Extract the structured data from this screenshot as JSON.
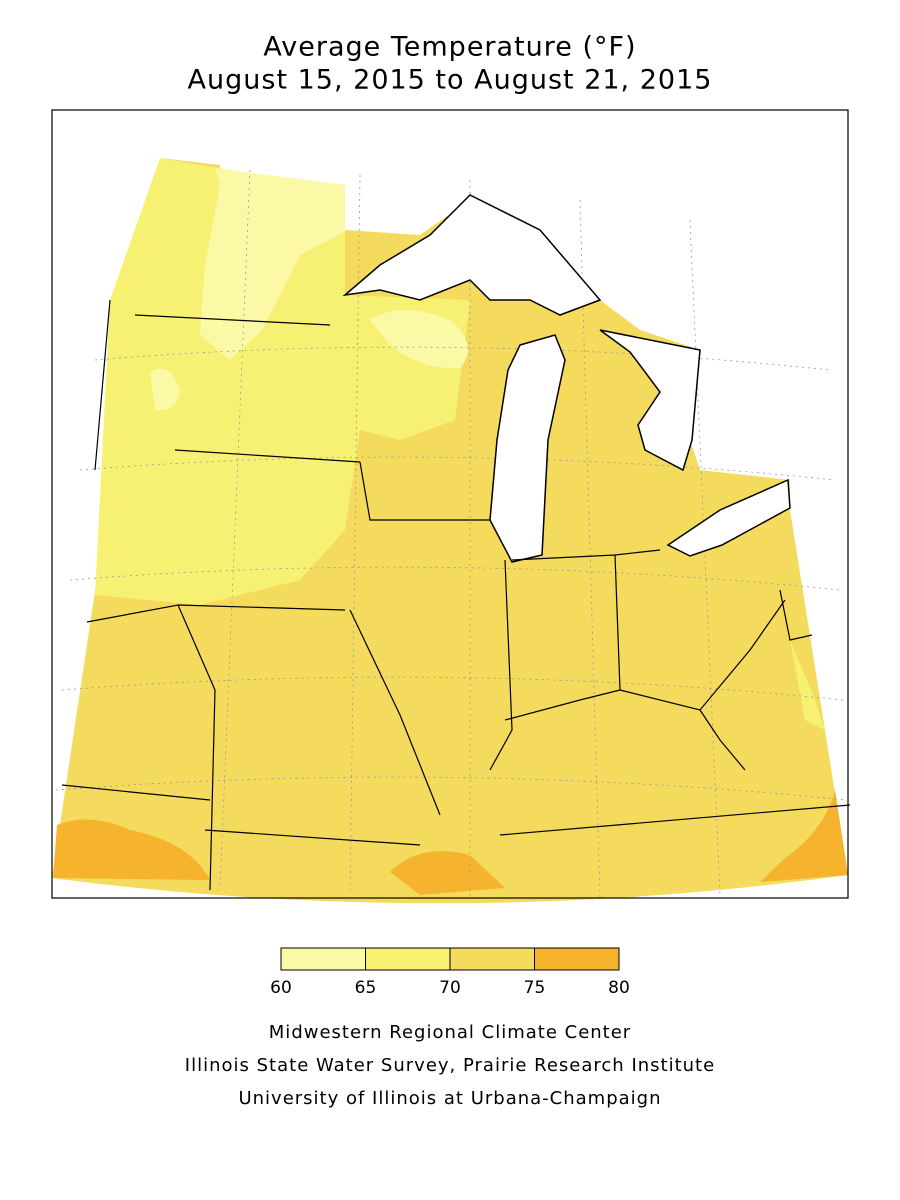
{
  "title": [
    "Average Temperature (°F)",
    "August 15, 2015 to August 21, 2015"
  ],
  "legend": {
    "ticks": [
      60,
      65,
      70,
      75,
      80
    ],
    "colors": [
      "#fbf8a6",
      "#f7f173",
      "#f4da5d",
      "#f6b32e"
    ]
  },
  "credits": [
    "Midwestern Regional Climate Center",
    "Illinois State Water Survey, Prairie Research Institute",
    "University of Illinois at Urbana-Champaign"
  ]
}
